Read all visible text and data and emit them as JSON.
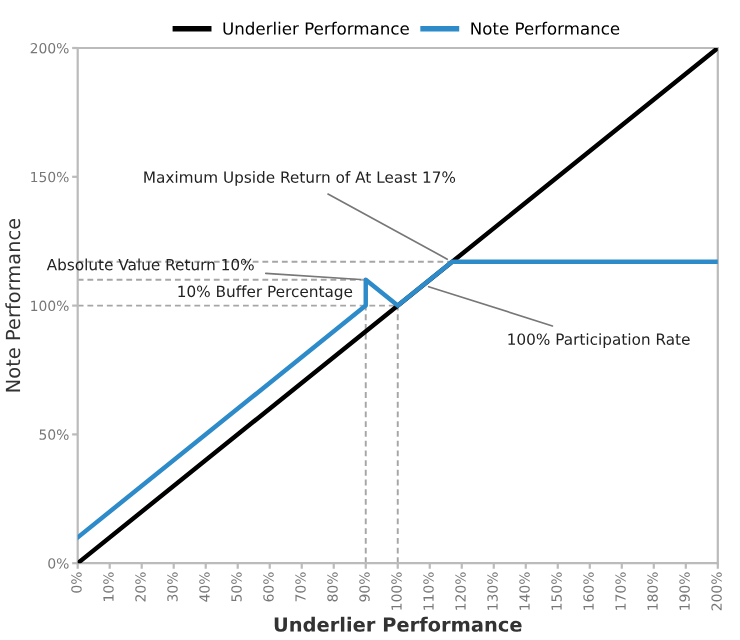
{
  "chart_data": {
    "type": "line",
    "xlabel": "Underlier Performance",
    "ylabel": "Note Performance",
    "xlim": [
      0,
      200
    ],
    "ylim": [
      0,
      200
    ],
    "xticks": [
      {
        "value": 0,
        "label": "0%"
      },
      {
        "value": 10,
        "label": "10%"
      },
      {
        "value": 20,
        "label": "20%"
      },
      {
        "value": 30,
        "label": "30%"
      },
      {
        "value": 40,
        "label": "40%"
      },
      {
        "value": 50,
        "label": "50%"
      },
      {
        "value": 60,
        "label": "60%"
      },
      {
        "value": 70,
        "label": "70%"
      },
      {
        "value": 80,
        "label": "80%"
      },
      {
        "value": 90,
        "label": "90%"
      },
      {
        "value": 100,
        "label": "100%"
      },
      {
        "value": 110,
        "label": "110%"
      },
      {
        "value": 120,
        "label": "120%"
      },
      {
        "value": 130,
        "label": "130%"
      },
      {
        "value": 140,
        "label": "140%"
      },
      {
        "value": 150,
        "label": "150%"
      },
      {
        "value": 160,
        "label": "160%"
      },
      {
        "value": 170,
        "label": "170%"
      },
      {
        "value": 180,
        "label": "180%"
      },
      {
        "value": 190,
        "label": "190%"
      },
      {
        "value": 200,
        "label": "200%"
      }
    ],
    "yticks": [
      {
        "value": 0,
        "label": "0%"
      },
      {
        "value": 50,
        "label": "50%"
      },
      {
        "value": 100,
        "label": "100%"
      },
      {
        "value": 150,
        "label": "150%"
      },
      {
        "value": 200,
        "label": "200%"
      }
    ],
    "grid": false,
    "legend": "top",
    "marker": "none",
    "series": [
      {
        "color": "#a6a6a6",
        "line_style": "dashed",
        "x": [
          0,
          117
        ],
        "values": [
          117,
          117
        ]
      },
      {
        "color": "#a6a6a6",
        "line_style": "dashed",
        "x": [
          0,
          90
        ],
        "values": [
          110,
          110
        ]
      },
      {
        "color": "#a6a6a6",
        "line_style": "dashed",
        "x": [
          0,
          100
        ],
        "values": [
          100,
          100
        ]
      },
      {
        "color": "#a6a6a6",
        "line_style": "dashed",
        "x": [
          90,
          90
        ],
        "values": [
          0,
          110
        ]
      },
      {
        "color": "#a6a6a6",
        "line_style": "dashed",
        "x": [
          100,
          100
        ],
        "values": [
          0,
          100
        ]
      },
      {
        "name": "Underlier Performance",
        "color": "#000000",
        "line_style": "solid",
        "x": [
          0,
          200
        ],
        "values": [
          0,
          200
        ]
      },
      {
        "name": "Note Performance",
        "color": "#2e8bc9",
        "line_style": "solid",
        "x": [
          0,
          90,
          90,
          100,
          117,
          200
        ],
        "values": [
          10,
          100,
          110,
          100,
          117,
          117
        ]
      }
    ],
    "annotations": [
      {
        "text": "Maximum Upside Return of At Least 17%",
        "x": 117,
        "y": 117
      },
      {
        "text": "Absolute Value Return 10%",
        "x": 90,
        "y": 110
      },
      "10% Buffer Percentage",
      {
        "text": "100% Participation Rate",
        "x": 108,
        "y": 108
      }
    ]
  }
}
